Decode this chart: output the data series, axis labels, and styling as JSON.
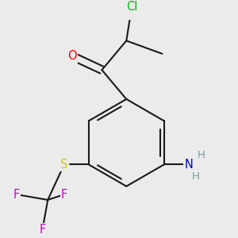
{
  "background_color": "#ebebeb",
  "bond_color": "#1a1a1a",
  "atom_colors": {
    "O": "#ff0000",
    "Cl": "#00bb00",
    "N": "#0000cc",
    "H": "#7a9a9a",
    "S": "#cccc00",
    "F": "#cc00cc",
    "C": "#1a1a1a"
  },
  "bond_width": 1.5,
  "font_size": 10.5,
  "fig_width": 3.0,
  "fig_height": 3.0,
  "dpi": 100
}
